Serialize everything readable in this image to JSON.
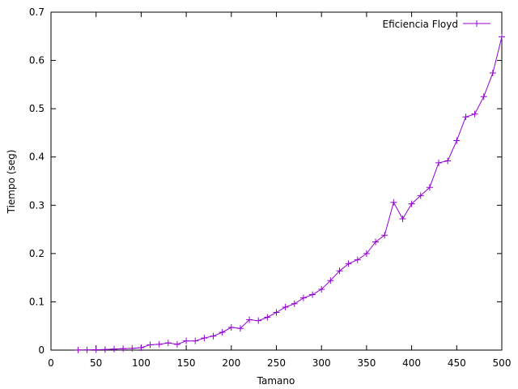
{
  "chart_data": {
    "type": "line",
    "xlabel": "Tamano",
    "ylabel": "Tiempo (seg)",
    "xlim": [
      0,
      500
    ],
    "ylim": [
      0,
      0.7
    ],
    "x_ticks": [
      "0",
      "50",
      "100",
      "150",
      "200",
      "250",
      "300",
      "350",
      "400",
      "450",
      "500"
    ],
    "y_ticks": [
      "0",
      "0.1",
      "0.2",
      "0.3",
      "0.4",
      "0.5",
      "0.6",
      "0.7"
    ],
    "grid": false,
    "legend_position": "top-right",
    "series": [
      {
        "name": "Eficiencia Floyd",
        "color": "#9400d3",
        "marker": "plus",
        "x": [
          30,
          40,
          50,
          60,
          70,
          80,
          90,
          100,
          110,
          120,
          130,
          140,
          150,
          160,
          170,
          180,
          190,
          200,
          210,
          220,
          230,
          240,
          250,
          260,
          270,
          280,
          290,
          300,
          310,
          320,
          330,
          340,
          350,
          360,
          370,
          380,
          390,
          400,
          410,
          420,
          430,
          440,
          450,
          460,
          470,
          480,
          490,
          500
        ],
        "y": [
          0.0003,
          0.0005,
          0.0008,
          0.0012,
          0.002,
          0.003,
          0.0035,
          0.005,
          0.011,
          0.012,
          0.015,
          0.012,
          0.019,
          0.019,
          0.025,
          0.029,
          0.037,
          0.047,
          0.045,
          0.063,
          0.061,
          0.068,
          0.078,
          0.089,
          0.096,
          0.108,
          0.115,
          0.126,
          0.144,
          0.164,
          0.179,
          0.187,
          0.2,
          0.224,
          0.238,
          0.306,
          0.272,
          0.303,
          0.32,
          0.337,
          0.388,
          0.392,
          0.434,
          0.483,
          0.489,
          0.525,
          0.574,
          0.649
        ]
      }
    ]
  }
}
